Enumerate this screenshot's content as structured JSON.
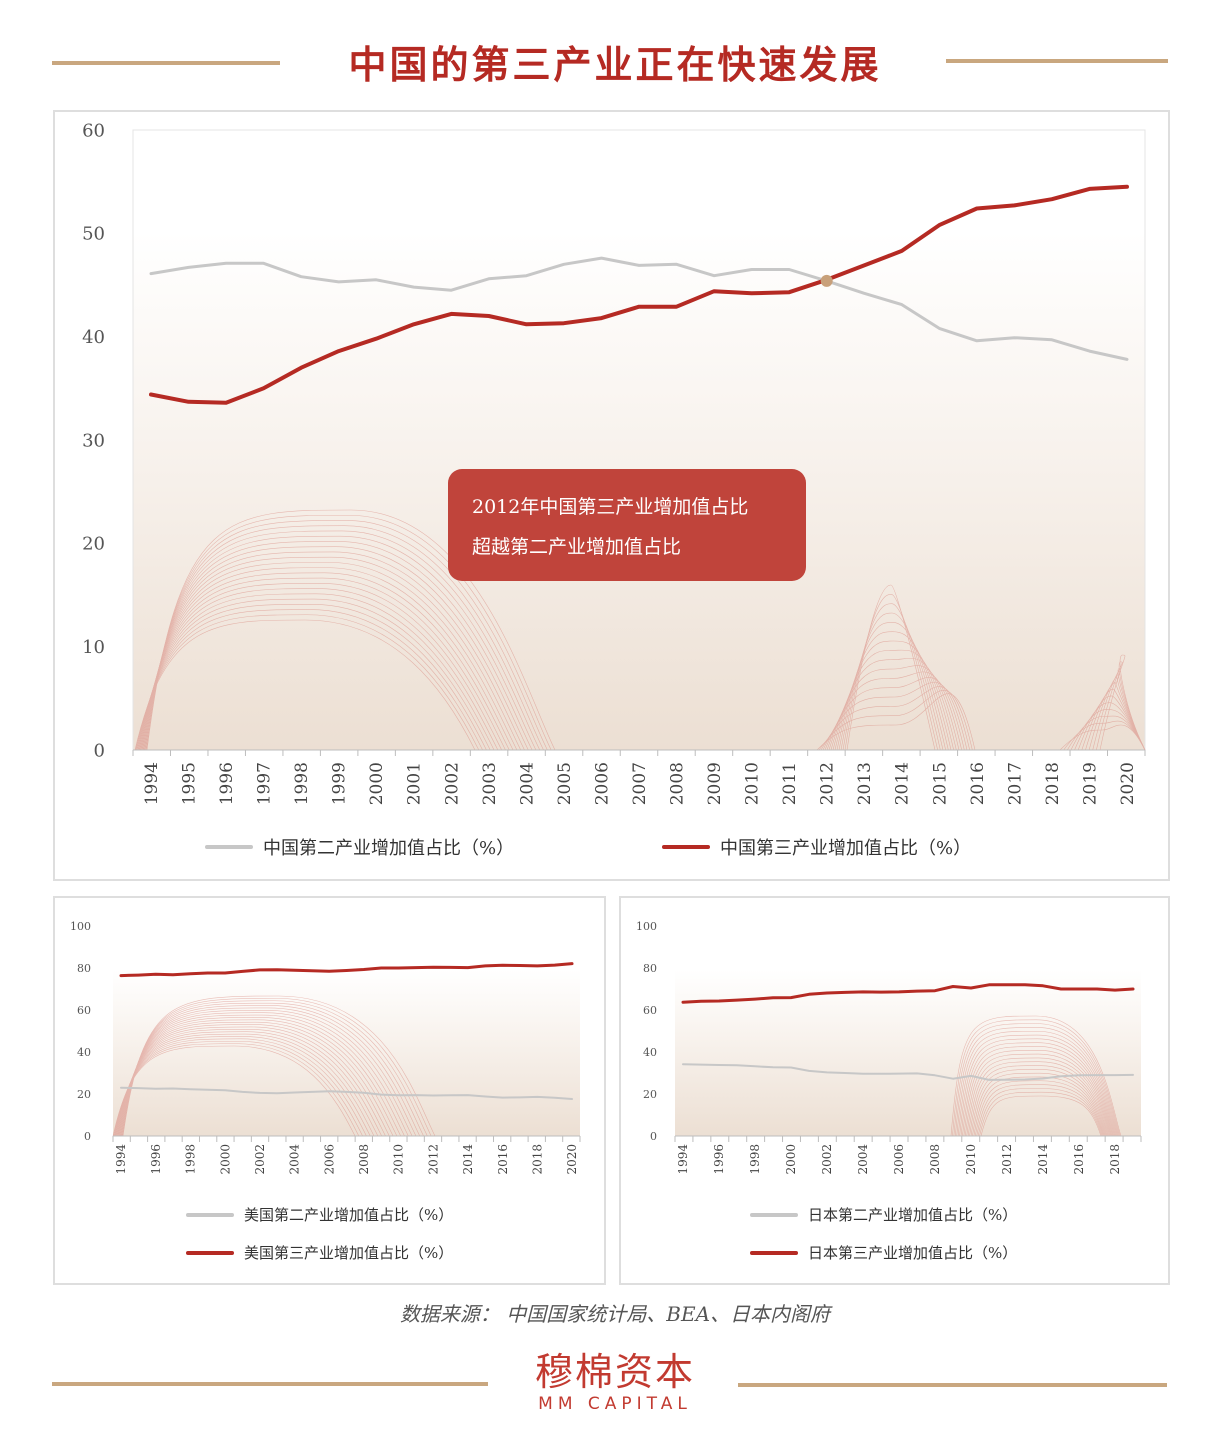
{
  "title": "中国的第三产业正在快速发展",
  "callout": {
    "line1": "2012年中国第三产业增加值占比",
    "line2": "超越第二产业增加值占比"
  },
  "source": "数据来源： 中国国家统计局、BEA、日本内阁府",
  "logo": {
    "cn": "穆棉资本",
    "en": "MM CAPITAL"
  },
  "colors": {
    "secondary": "#c7c7c7",
    "tertiary": "#b52a23",
    "accent": "#c0443b",
    "gold": "#c9a77f",
    "crossover_marker": "#c8a07a"
  },
  "chart_data": [
    {
      "id": "china",
      "type": "line",
      "categories": [
        "1994",
        "1995",
        "1996",
        "1997",
        "1998",
        "1999",
        "2000",
        "2001",
        "2002",
        "2003",
        "2004",
        "2005",
        "2006",
        "2007",
        "2008",
        "2009",
        "2010",
        "2011",
        "2012",
        "2013",
        "2014",
        "2015",
        "2016",
        "2017",
        "2018",
        "2019",
        "2020"
      ],
      "ylim": [
        0,
        60
      ],
      "yticks": [
        "0",
        "10",
        "20",
        "30",
        "40",
        "50",
        "60"
      ],
      "series": [
        {
          "name": "中国第二产业增加值占比（%）",
          "values": [
            46.1,
            46.7,
            47.1,
            47.1,
            45.8,
            45.3,
            45.5,
            44.8,
            44.5,
            45.6,
            45.9,
            47.0,
            47.6,
            46.9,
            47.0,
            45.9,
            46.5,
            46.5,
            45.4,
            44.2,
            43.1,
            40.8,
            39.6,
            39.9,
            39.7,
            38.6,
            37.8
          ]
        },
        {
          "name": "中国第三产业增加值占比（%）",
          "values": [
            34.4,
            33.7,
            33.6,
            35.0,
            37.0,
            38.6,
            39.8,
            41.2,
            42.2,
            42.0,
            41.2,
            41.3,
            41.8,
            42.9,
            42.9,
            44.4,
            44.2,
            44.3,
            45.5,
            46.9,
            48.3,
            50.8,
            52.4,
            52.7,
            53.3,
            54.3,
            54.5
          ]
        }
      ],
      "annotation": {
        "category": "2012",
        "value": 45.4
      }
    },
    {
      "id": "usa",
      "type": "line",
      "categories": [
        "1994",
        "1995",
        "1996",
        "1997",
        "1998",
        "1999",
        "2000",
        "2001",
        "2002",
        "2003",
        "2004",
        "2005",
        "2006",
        "2007",
        "2008",
        "2009",
        "2010",
        "2011",
        "2012",
        "2013",
        "2014",
        "2015",
        "2016",
        "2017",
        "2018",
        "2019",
        "2020"
      ],
      "xtick_labels": [
        "1994",
        "1996",
        "1998",
        "2000",
        "2002",
        "2004",
        "2006",
        "2008",
        "2010",
        "2012",
        "2014",
        "2016",
        "2018",
        "2020"
      ],
      "ylim": [
        0,
        100
      ],
      "yticks": [
        "0",
        "20",
        "40",
        "60",
        "80",
        "100"
      ],
      "series": [
        {
          "name": "美国第二产业增加值占比（%）",
          "values": [
            23.0,
            22.8,
            22.5,
            22.6,
            22.3,
            22.0,
            21.8,
            21.0,
            20.5,
            20.4,
            20.7,
            21.0,
            21.3,
            21.0,
            20.6,
            19.7,
            19.4,
            19.5,
            19.3,
            19.4,
            19.5,
            18.8,
            18.3,
            18.4,
            18.6,
            18.2,
            17.6
          ]
        },
        {
          "name": "美国第三产业增加值占比（%）",
          "values": [
            76.4,
            76.6,
            77.0,
            76.8,
            77.3,
            77.6,
            77.6,
            78.4,
            79.1,
            79.2,
            78.9,
            78.7,
            78.5,
            78.8,
            79.3,
            80.0,
            80.0,
            80.2,
            80.4,
            80.3,
            80.2,
            81.0,
            81.3,
            81.2,
            81.0,
            81.4,
            82.1
          ]
        }
      ]
    },
    {
      "id": "japan",
      "type": "line",
      "categories": [
        "1994",
        "1995",
        "1996",
        "1997",
        "1998",
        "1999",
        "2000",
        "2001",
        "2002",
        "2003",
        "2004",
        "2005",
        "2006",
        "2007",
        "2008",
        "2009",
        "2010",
        "2011",
        "2012",
        "2013",
        "2014",
        "2015",
        "2016",
        "2017",
        "2018",
        "2019"
      ],
      "xtick_labels": [
        "1994",
        "1996",
        "1998",
        "2000",
        "2002",
        "2004",
        "2006",
        "2008",
        "2010",
        "2012",
        "2014",
        "2016",
        "2018"
      ],
      "ylim": [
        0,
        100
      ],
      "yticks": [
        "0",
        "20",
        "40",
        "60",
        "80",
        "100"
      ],
      "series": [
        {
          "name": "日本第二产业增加值占比（%）",
          "values": [
            34.2,
            34.0,
            33.8,
            33.7,
            33.2,
            32.7,
            32.6,
            31.0,
            30.3,
            30.0,
            29.6,
            29.6,
            29.7,
            29.8,
            28.9,
            27.3,
            28.6,
            26.7,
            26.8,
            26.9,
            27.4,
            28.5,
            28.9,
            29.0,
            29.0,
            29.1
          ]
        },
        {
          "name": "日本第三产业增加值占比（%）",
          "values": [
            63.7,
            64.2,
            64.3,
            64.7,
            65.2,
            65.8,
            65.9,
            67.5,
            68.1,
            68.4,
            68.6,
            68.5,
            68.6,
            69.0,
            69.2,
            71.2,
            70.5,
            72.0,
            72.0,
            72.0,
            71.5,
            70.0,
            70.0,
            70.0,
            69.5,
            70.0
          ]
        }
      ]
    }
  ]
}
